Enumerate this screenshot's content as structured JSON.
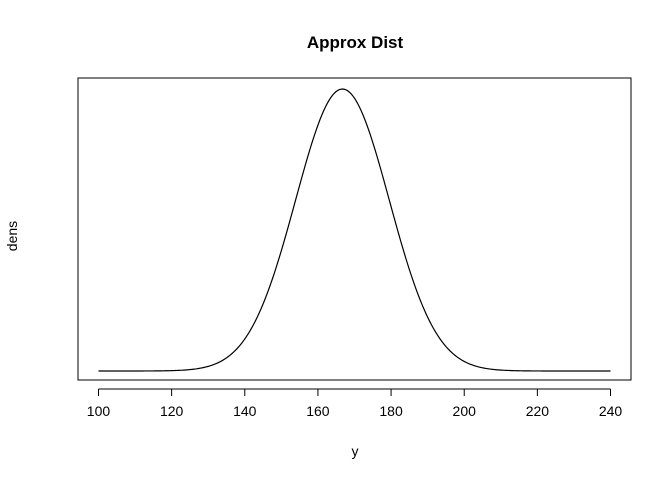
{
  "chart_data": {
    "type": "line",
    "title": "Approx Dist",
    "xlabel": "y",
    "ylabel": "dens",
    "xlim": [
      94.4,
      245.6
    ],
    "x_ticks": [
      100,
      120,
      140,
      160,
      180,
      200,
      220,
      240
    ],
    "y_ticks_shown": false,
    "grid": false,
    "series": [
      {
        "curve": "normal-density",
        "mean": 166.7,
        "sd": 12.8,
        "x": [
          100,
          130,
          135,
          140,
          145,
          150,
          155,
          160,
          163,
          166.7,
          170,
          173,
          180,
          185,
          190,
          195,
          200,
          205,
          240
        ],
        "y_relative": [
          0.0,
          0.016,
          0.048,
          0.113,
          0.222,
          0.369,
          0.545,
          0.716,
          0.81,
          1.0,
          0.926,
          0.77,
          0.585,
          0.397,
          0.24,
          0.121,
          0.055,
          0.027,
          0.0
        ]
      }
    ]
  }
}
